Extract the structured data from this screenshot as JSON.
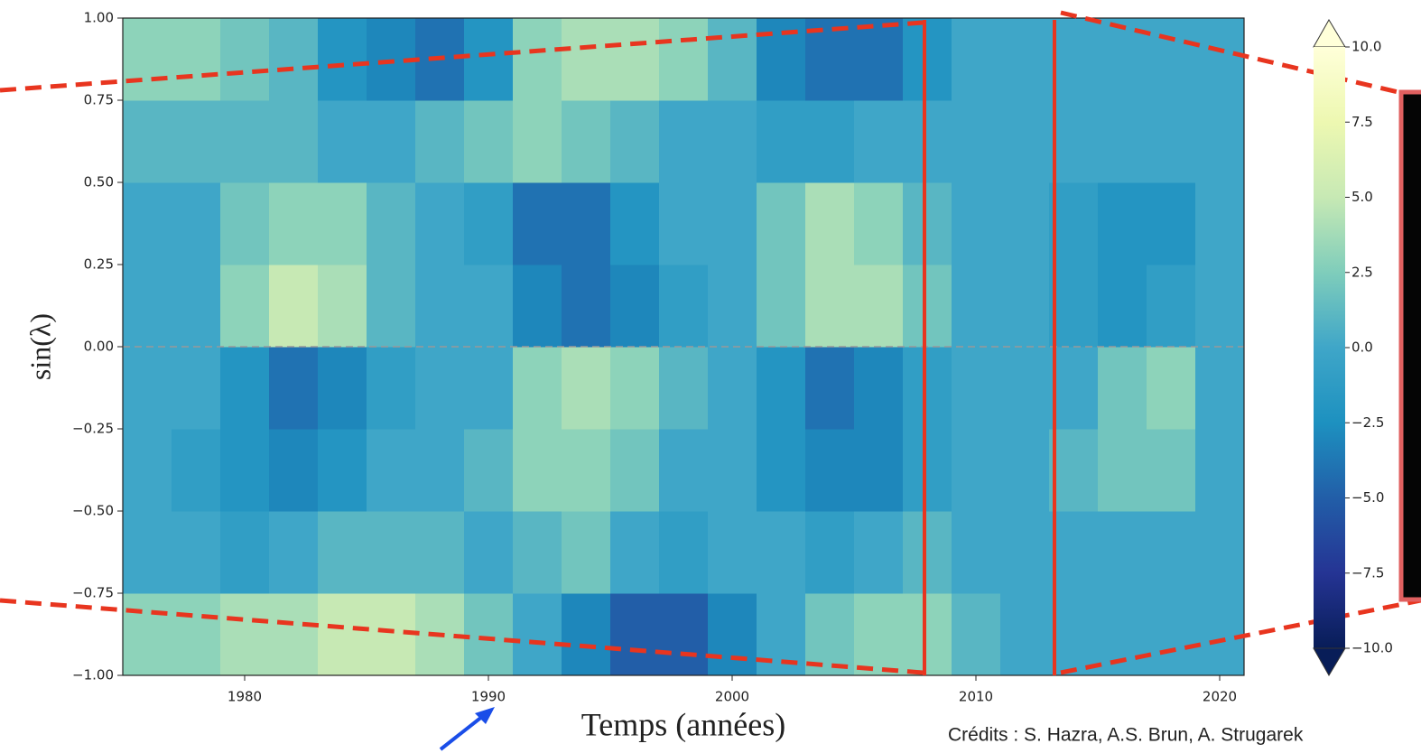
{
  "chart_data": {
    "type": "heatmap",
    "xlabel": "Temps (années)",
    "ylabel": "sin(λ)",
    "credits": "Crédits : S. Hazra, A.S. Brun, A. Strugarek",
    "xlim": [
      1975,
      2021
    ],
    "ylim": [
      -1,
      1
    ],
    "xticks": [
      1980,
      1990,
      2000,
      2010,
      2020
    ],
    "yticks": [
      {
        "value": 1,
        "label": "1.00"
      },
      {
        "value": 0.75,
        "label": "0.75"
      },
      {
        "value": 0.5,
        "label": "0.50"
      },
      {
        "value": 0.25,
        "label": "0.25"
      },
      {
        "value": 0,
        "label": "0.00"
      },
      {
        "value": -0.25,
        "label": "−0.25"
      },
      {
        "value": -0.5,
        "label": "−0.50"
      },
      {
        "value": -0.75,
        "label": "−0.75"
      },
      {
        "value": -1,
        "label": "−1.00"
      }
    ],
    "xbins": [
      1975,
      1977,
      1979,
      1981,
      1983,
      1985,
      1987,
      1989,
      1991,
      1993,
      1995,
      1997,
      1999,
      2001,
      2003,
      2005,
      2007,
      2009,
      2011,
      2013,
      2015,
      2017,
      2019,
      2021
    ],
    "ybins": [
      -1,
      -0.75,
      -0.5,
      -0.25,
      0,
      0.25,
      0.5,
      0.75,
      1
    ],
    "z": [
      [
        3,
        3,
        4,
        4,
        5,
        5,
        4,
        2,
        0,
        -3,
        -5,
        -5,
        -3,
        0,
        2,
        3,
        3,
        1,
        0,
        0,
        0,
        0,
        0
      ],
      [
        0,
        0,
        -1,
        0,
        1,
        1,
        1,
        0,
        1,
        2,
        0,
        -1,
        0,
        0,
        -1,
        0,
        1,
        0,
        0,
        0,
        0,
        0,
        0
      ],
      [
        0,
        -1,
        -2,
        -3,
        -2,
        0,
        0,
        1,
        3,
        3,
        2,
        0,
        0,
        -2,
        -3,
        -3,
        -1,
        0,
        0,
        1,
        2,
        2,
        0
      ],
      [
        0,
        0,
        -2,
        -4,
        -3,
        -1,
        0,
        0,
        3,
        4,
        3,
        1,
        0,
        -2,
        -4,
        -3,
        -1,
        0,
        0,
        0,
        2,
        3,
        0
      ],
      [
        0,
        0,
        3,
        5,
        4,
        1,
        0,
        0,
        -3,
        -4,
        -3,
        -1,
        0,
        2,
        4,
        4,
        2,
        0,
        0,
        -1,
        -2,
        -1,
        0
      ],
      [
        0,
        0,
        2,
        3,
        3,
        1,
        0,
        -1,
        -4,
        -4,
        -2,
        0,
        0,
        2,
        4,
        3,
        1,
        0,
        0,
        -1,
        -2,
        -2,
        0
      ],
      [
        1,
        1,
        1,
        1,
        0,
        0,
        1,
        2,
        3,
        2,
        1,
        0,
        0,
        -1,
        -1,
        0,
        0,
        0,
        0,
        0,
        0,
        0,
        0
      ],
      [
        3,
        3,
        2,
        1,
        -2,
        -3,
        -4,
        -2,
        3,
        4,
        4,
        3,
        1,
        -3,
        -4,
        -4,
        -2,
        0,
        0,
        0,
        0,
        0,
        0
      ]
    ],
    "clim": [
      -10,
      10
    ],
    "cticks": [
      {
        "value": 10,
        "label": "10.0"
      },
      {
        "value": 7.5,
        "label": "7.5"
      },
      {
        "value": 5,
        "label": "5.0"
      },
      {
        "value": 2.5,
        "label": "2.5"
      },
      {
        "value": 0,
        "label": "0.0"
      },
      {
        "value": -2.5,
        "label": "−2.5"
      },
      {
        "value": -5,
        "label": "−5.0"
      },
      {
        "value": -7.5,
        "label": "−7.5"
      },
      {
        "value": -10,
        "label": "−10.0"
      }
    ],
    "cmap": [
      "#081d58",
      "#253494",
      "#225ea8",
      "#1d91c0",
      "#3fa6c8",
      "#7fcdbb",
      "#c7e9b4",
      "#edf8b1",
      "#ffffd9"
    ]
  }
}
